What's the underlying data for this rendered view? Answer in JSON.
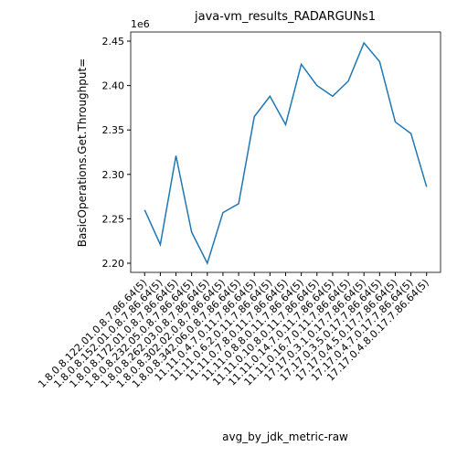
{
  "chart_data": {
    "type": "line",
    "title": "java-vm_results_RADARGUNs1",
    "x_label": "avg_by_jdk_metric-raw",
    "y_label": "BasicOperations.Get.Throughput=",
    "y_offset_label": "1e6",
    "categories": [
      "1.8.0.8.122.01.0.8.7.86.64(5)",
      "1.8.0.8.152.01.0.8.7.86.64(5)",
      "1.8.0.8.172.01.0.8.7.86.64(5)",
      "1.8.0.8.232.05.0.8.7.86.64(5)",
      "1.8.0.8.262.03.0.8.7.86.64(5)",
      "1.8.0.8.302.02.0.8.7.86.64(5)",
      "1.8.0.8.342.06.0.8.7.86.64(5)",
      "11.11.0.4.7.0.11.7.86.64(5)",
      "11.11.0.6.2.0.11.7.86.64(5)",
      "11.11.0.7.8.0.11.7.86.64(5)",
      "11.11.0.8.8.0.11.7.86.64(5)",
      "11.11.0.10.8.0.11.7.86.64(5)",
      "11.11.0.14.7.0.11.7.86.64(5)",
      "11.11.0.16.7.0.11.7.86.64(5)",
      "17.17.0.3.1.0.17.7.86.64(5)",
      "17.17.0.3.5.0.17.7.86.64(5)",
      "17.17.0.4.5.0.17.7.86.64(5)",
      "17.17.0.4.7.0.17.7.86.64(5)",
      "17.17.0.4.8.0.17.7.86.64(5)"
    ],
    "series": [
      {
        "name": "BasicOperations.Get.Throughput=",
        "color": "#1f77b4",
        "values": [
          2.26,
          2.221,
          2.321,
          2.235,
          2.2,
          2.257,
          2.267,
          2.365,
          2.388,
          2.356,
          2.424,
          2.4,
          2.388,
          2.405,
          2.448,
          2.427,
          2.359,
          2.346,
          2.286
        ]
      }
    ],
    "ylim": [
      2.1897,
      2.4603
    ],
    "yticks": [
      {
        "value": 2.2,
        "label": "2.20"
      },
      2.25,
      {
        "value": 2.3,
        "label": "2.30"
      },
      2.35,
      {
        "value": 2.4,
        "label": "2.40"
      },
      2.45
    ]
  }
}
